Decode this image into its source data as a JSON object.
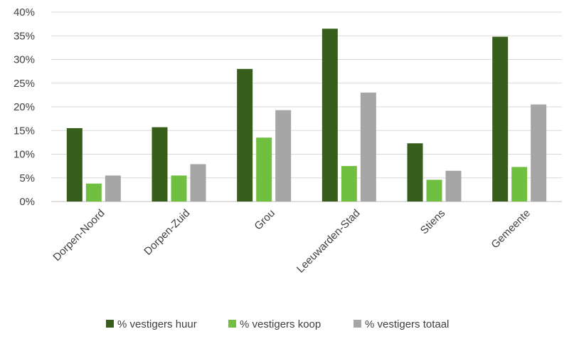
{
  "chart_data": {
    "type": "bar",
    "categories": [
      "Dorpen-Noord",
      "Dorpen-Zuid",
      "Grou",
      "Leeuwarden-Stad",
      "Stiens",
      "Gemeente"
    ],
    "series": [
      {
        "name": "% vestigers huur",
        "color": "#375f1b",
        "values": [
          15.5,
          15.7,
          28.0,
          36.5,
          12.3,
          34.8
        ]
      },
      {
        "name": "% vestigers koop",
        "color": "#70bf41",
        "values": [
          3.8,
          5.5,
          13.5,
          7.5,
          4.6,
          7.3
        ]
      },
      {
        "name": "% vestigers totaal",
        "color": "#a6a6a6",
        "values": [
          5.5,
          7.9,
          19.3,
          23.0,
          6.5,
          20.5
        ]
      }
    ],
    "y_ticks": [
      "0%",
      "5%",
      "10%",
      "15%",
      "20%",
      "25%",
      "30%",
      "35%",
      "40%"
    ],
    "ylim": [
      0,
      40
    ],
    "grid": true,
    "legend_position": "bottom",
    "title": "",
    "xlabel": "",
    "ylabel": ""
  }
}
